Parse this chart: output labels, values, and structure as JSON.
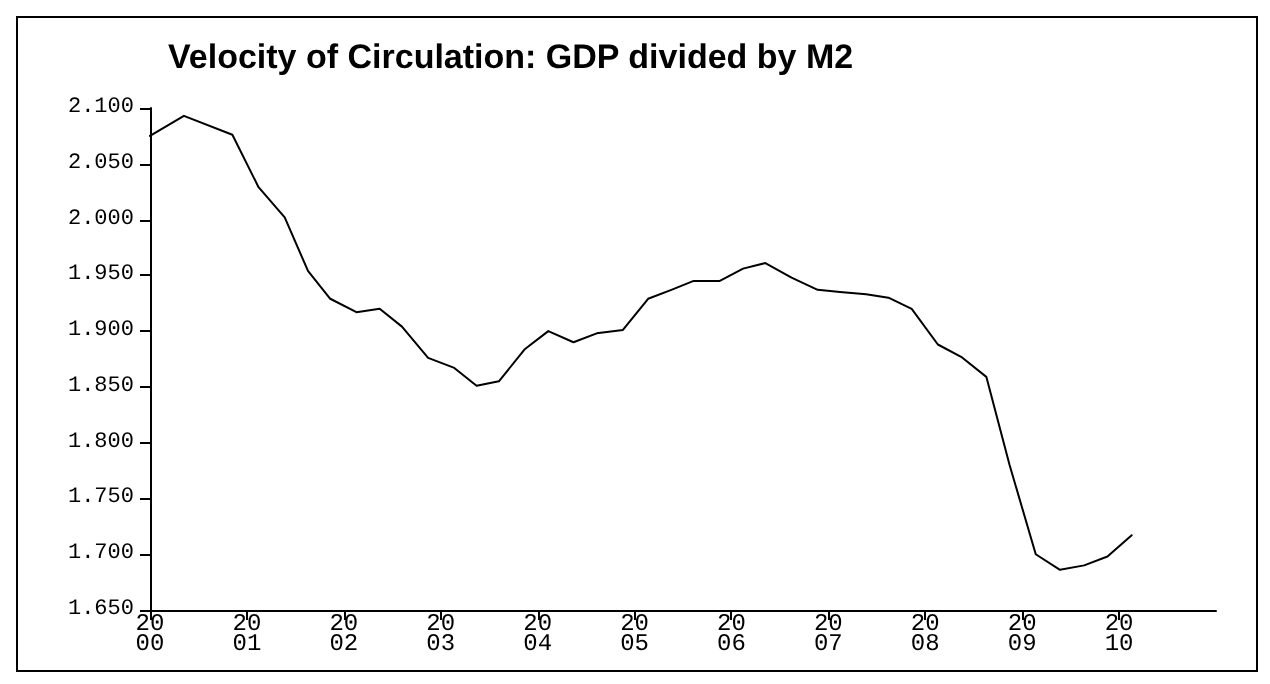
{
  "chart_data": {
    "type": "line",
    "title": "Velocity of Circulation: GDP divided by M2",
    "x": [
      2000.0,
      2000.35,
      2000.85,
      2001.12,
      2001.39,
      2001.63,
      2001.86,
      2002.13,
      2002.37,
      2002.6,
      2002.87,
      2003.14,
      2003.37,
      2003.6,
      2003.87,
      2004.11,
      2004.37,
      2004.61,
      2004.88,
      2005.14,
      2005.38,
      2005.61,
      2005.88,
      2006.12,
      2006.35,
      2006.62,
      2006.89,
      2007.12,
      2007.39,
      2007.62,
      2007.86,
      2008.13,
      2008.37,
      2008.63,
      2008.87,
      2009.14,
      2009.39,
      2009.64,
      2009.88,
      2010.13
    ],
    "series": [
      {
        "color": "#000000",
        "values": [
          2.075,
          2.093,
          2.076,
          2.029,
          2.002,
          1.954,
          1.929,
          1.917,
          1.92,
          1.904,
          1.876,
          1.867,
          1.851,
          1.855,
          1.884,
          1.9,
          1.89,
          1.898,
          1.901,
          1.929,
          1.937,
          1.945,
          1.945,
          1.956,
          1.961,
          1.948,
          1.937,
          1.935,
          1.933,
          1.93,
          1.92,
          1.888,
          1.877,
          1.859,
          1.78,
          1.7,
          1.686,
          1.69,
          1.698,
          1.717
        ]
      }
    ],
    "xlim": [
      2000,
      2011
    ],
    "xticks": [
      2000,
      2001,
      2002,
      2003,
      2004,
      2005,
      2006,
      2007,
      2008,
      2009,
      2010
    ],
    "ylim": [
      1.65,
      2.1
    ],
    "yticks": [
      {
        "value": 1.65,
        "label": "1.650"
      },
      {
        "value": 1.7,
        "label": "1.700"
      },
      {
        "value": 1.75,
        "label": "1.750"
      },
      {
        "value": 1.8,
        "label": "1.800"
      },
      {
        "value": 1.85,
        "label": "1.850"
      },
      {
        "value": 1.9,
        "label": "1.900"
      },
      {
        "value": 1.95,
        "label": "1.950"
      },
      {
        "value": 2.0,
        "label": "2.000"
      },
      {
        "value": 2.05,
        "label": "2.050"
      },
      {
        "value": 2.1,
        "label": "2.100"
      }
    ],
    "grid": false,
    "marker": "none",
    "line_style": "solid"
  }
}
